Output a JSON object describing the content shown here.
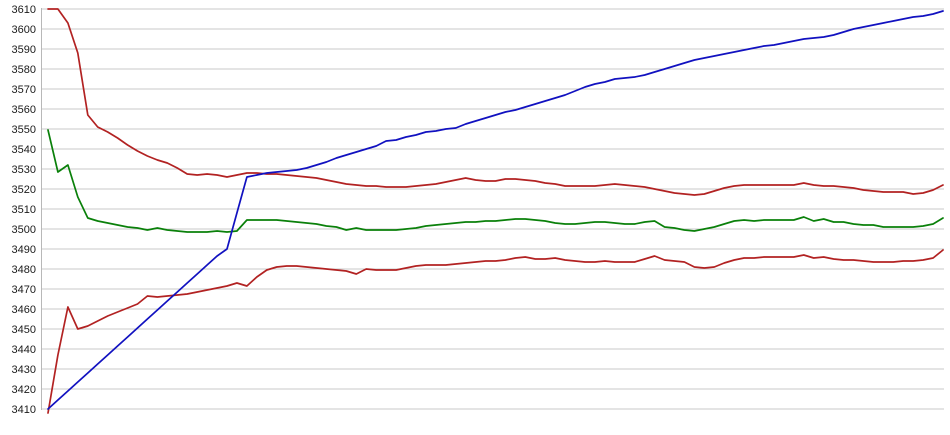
{
  "chart_data": {
    "type": "line",
    "title": "",
    "xlabel": "",
    "ylabel": "",
    "legend": "none",
    "grid": "horizontal",
    "x_axis": {
      "tick_labels": []
    },
    "y_axis": {
      "min": 3410,
      "max": 3610,
      "tick_interval": 10,
      "tick_labels": [
        "3610",
        "3600",
        "3590",
        "3580",
        "3570",
        "3560",
        "3550",
        "3540",
        "3530",
        "3520",
        "3510",
        "3500",
        "3490",
        "3480",
        "3470",
        "3460",
        "3450",
        "3440",
        "3430",
        "3420",
        "3410"
      ]
    },
    "colors": {
      "red_series": "#b22222",
      "blue_series": "#1111c0",
      "green_series": "#0a800a",
      "gridline": "#c8c8c8",
      "axis_line": "#b8b8b8",
      "label_text": "#1a1a1a",
      "background": "#ffffff"
    },
    "series": [
      {
        "name": "red-upper",
        "color_key": "red_series",
        "values": [
          3610,
          3610,
          3603,
          3588,
          3557,
          3551,
          3548.5,
          3545.5,
          3542,
          3539,
          3536.5,
          3534.5,
          3533,
          3530.5,
          3527.5,
          3527,
          3527.5,
          3527,
          3526,
          3527,
          3528,
          3528,
          3527.5,
          3527.5,
          3527,
          3526.5,
          3526,
          3525.5,
          3524.5,
          3523.5,
          3522.5,
          3522,
          3521.5,
          3521.5,
          3521,
          3521,
          3521,
          3521.5,
          3522,
          3522.5,
          3523.5,
          3524.5,
          3525.5,
          3524.5,
          3524,
          3524,
          3525,
          3525,
          3524.5,
          3524,
          3523,
          3522.5,
          3521.5,
          3521.5,
          3521.5,
          3521.5,
          3522,
          3522.5,
          3522,
          3521.5,
          3521,
          3520,
          3519,
          3518,
          3517.5,
          3517,
          3517.5,
          3519,
          3520.5,
          3521.5,
          3522,
          3522,
          3522,
          3522,
          3522,
          3522,
          3523,
          3522,
          3521.5,
          3521.5,
          3521,
          3520.5,
          3519.5,
          3519,
          3518.5,
          3518.5,
          3518.5,
          3517.5,
          3518,
          3519.5,
          3522
        ]
      },
      {
        "name": "green",
        "color_key": "green_series",
        "values": [
          3549.5,
          3528.5,
          3532,
          3516,
          3505.5,
          3504,
          3503,
          3502,
          3501,
          3500.5,
          3499.5,
          3500.5,
          3499.5,
          3499,
          3498.5,
          3498.5,
          3498.5,
          3499,
          3498.5,
          3499,
          3504.5,
          3504.5,
          3504.5,
          3504.5,
          3504,
          3503.5,
          3503,
          3502.5,
          3501.5,
          3501,
          3499.5,
          3500.5,
          3499.5,
          3499.5,
          3499.5,
          3499.5,
          3500,
          3500.5,
          3501.5,
          3502,
          3502.5,
          3503,
          3503.5,
          3503.5,
          3504,
          3504,
          3504.5,
          3505,
          3505,
          3504.5,
          3504,
          3503,
          3502.5,
          3502.5,
          3503,
          3503.5,
          3503.5,
          3503,
          3502.5,
          3502.5,
          3503.5,
          3504,
          3501,
          3500.5,
          3499.5,
          3499,
          3500,
          3501,
          3502.5,
          3504,
          3504.5,
          3504,
          3504.5,
          3504.5,
          3504.5,
          3504.5,
          3506,
          3504,
          3505,
          3503.5,
          3503.5,
          3502.5,
          3502,
          3502,
          3501,
          3501,
          3501,
          3501,
          3501.5,
          3502.5,
          3505.5
        ]
      },
      {
        "name": "red-lower",
        "color_key": "red_series",
        "values": [
          3408,
          3437,
          3461,
          3450,
          3451.5,
          3454,
          3456.5,
          3458.5,
          3460.5,
          3462.5,
          3466.5,
          3466,
          3466.5,
          3467,
          3467.5,
          3468.5,
          3469.5,
          3470.5,
          3471.5,
          3473,
          3471.5,
          3476,
          3479.5,
          3481,
          3481.5,
          3481.5,
          3481,
          3480.5,
          3480,
          3479.5,
          3479,
          3477.5,
          3480,
          3479.5,
          3479.5,
          3479.5,
          3480.5,
          3481.5,
          3482,
          3482,
          3482,
          3482.5,
          3483,
          3483.5,
          3484,
          3484,
          3484.5,
          3485.5,
          3486,
          3485,
          3485,
          3485.5,
          3484.5,
          3484,
          3483.5,
          3483.5,
          3484,
          3483.5,
          3483.5,
          3483.5,
          3485,
          3486.5,
          3484.5,
          3484,
          3483.5,
          3481,
          3480.5,
          3481,
          3483,
          3484.5,
          3485.5,
          3485.5,
          3486,
          3486,
          3486,
          3486,
          3487,
          3485.5,
          3486,
          3485,
          3484.5,
          3484.5,
          3484,
          3483.5,
          3483.5,
          3483.5,
          3484,
          3484,
          3484.5,
          3485.5,
          3489.5
        ]
      },
      {
        "name": "blue",
        "color_key": "blue_series",
        "values": [
          3410,
          3414.5,
          3419,
          3423.5,
          3428,
          3432.5,
          3437,
          3441.5,
          3446,
          3450.5,
          3455,
          3459.5,
          3464,
          3468.5,
          3473,
          3477.5,
          3482,
          3486.5,
          3490,
          3508,
          3526,
          3527,
          3528,
          3528.5,
          3529,
          3529.5,
          3530.5,
          3532,
          3533.5,
          3535.5,
          3537,
          3538.5,
          3540,
          3541.5,
          3544,
          3544.5,
          3546,
          3547,
          3548.5,
          3549,
          3550,
          3550.5,
          3552.5,
          3554,
          3555.5,
          3557,
          3558.5,
          3559.5,
          3561,
          3562.5,
          3564,
          3565.5,
          3567,
          3569,
          3571,
          3572.5,
          3573.5,
          3575,
          3575.5,
          3576,
          3577,
          3578.5,
          3580,
          3581.5,
          3583,
          3584.5,
          3585.5,
          3586.5,
          3587.5,
          3588.5,
          3589.5,
          3590.5,
          3591.5,
          3592,
          3593,
          3594,
          3595,
          3595.5,
          3596,
          3597,
          3598.5,
          3600,
          3601,
          3602,
          3603,
          3604,
          3605,
          3606,
          3606.5,
          3607.5,
          3609
        ]
      }
    ]
  }
}
